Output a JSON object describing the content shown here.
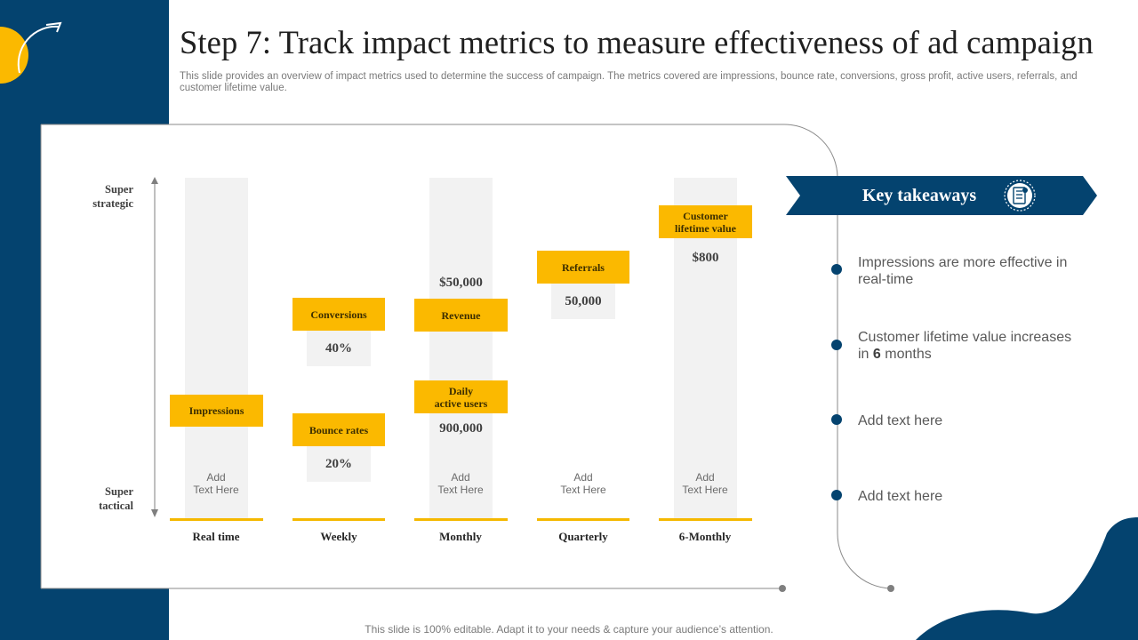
{
  "title": "Step 7: Track impact metrics to measure effectiveness of ad campaign",
  "subtitle": "This slide provides an overview of impact metrics used to determine the success of campaign. The metrics covered are impressions, bounce rate, conversions, gross profit, active users, referrals, and customer lifetime value.",
  "y_axis": {
    "top_line1": "Super",
    "top_line2": "strategic",
    "bottom_line1": "Super",
    "bottom_line2": "tactical"
  },
  "columns": [
    {
      "label": "Real time",
      "add_line1": "Add",
      "add_line2": "Text Here"
    },
    {
      "label": "Weekly"
    },
    {
      "label": "Monthly",
      "add_line1": "Add",
      "add_line2": "Text Here"
    },
    {
      "label": "Quarterly",
      "add_line1": "Add",
      "add_line2": "Text Here"
    },
    {
      "label": "6-Monthly",
      "add_line1": "Add",
      "add_line2": "Text Here"
    }
  ],
  "metrics": {
    "impressions": {
      "label": "Impressions"
    },
    "conversions": {
      "label": "Conversions",
      "value": "40%"
    },
    "bounce": {
      "label": "Bounce rates",
      "value": "20%"
    },
    "revenue": {
      "label": "Revenue",
      "value": "$50,000"
    },
    "dau": {
      "line1": "Daily",
      "line2": "active users",
      "value": "900,000"
    },
    "referrals": {
      "label": "Referrals",
      "value": "50,000"
    },
    "clv": {
      "line1": "Customer",
      "line2": "lifetime value",
      "value": "$800"
    }
  },
  "key_takeaways": {
    "heading": "Key takeaways",
    "items": [
      {
        "line1": "Impressions are more effective in",
        "line2": "real-time"
      },
      {
        "line1": "Customer lifetime value increases",
        "line2_pre": "in ",
        "line2_bold": "6",
        "line2_post": " months"
      },
      {
        "text": "Add text here"
      },
      {
        "text": "Add text here"
      }
    ]
  },
  "footer": "This slide is 100% editable. Adapt it to your needs & capture your audience’s attention.",
  "colors": {
    "navy": "#04436f",
    "yellow": "#fbb900",
    "column_bg": "#f2f2f2"
  }
}
